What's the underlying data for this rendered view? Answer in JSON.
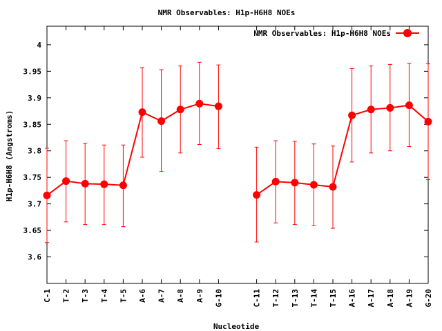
{
  "chart_data": {
    "type": "line",
    "title": "NMR Observables: H1p-H6H8 NOEs",
    "xlabel": "Nucleotide",
    "ylabel": "H1p-H6H8 (Angstroms)",
    "ylim": [
      3.55,
      4.035
    ],
    "yticks": [
      3.6,
      3.65,
      3.7,
      3.75,
      3.8,
      3.85,
      3.9,
      3.95,
      4
    ],
    "ytick_labels": [
      "3.6",
      "3.65",
      "3.7",
      "3.75",
      "3.8",
      "3.85",
      "3.9",
      "3.95",
      "4"
    ],
    "grid": false,
    "legend_position": "top-right",
    "color": "#ff0000",
    "categories": [
      "C-1",
      "T-2",
      "T-3",
      "T-4",
      "T-5",
      "A-6",
      "A-7",
      "A-8",
      "A-9",
      "G-10",
      "C-11",
      "T-12",
      "T-13",
      "T-14",
      "T-15",
      "A-16",
      "A-17",
      "A-18",
      "A-19",
      "G-20"
    ],
    "x_index": [
      1,
      2,
      3,
      4,
      5,
      6,
      7,
      8,
      9,
      10,
      12,
      13,
      14,
      15,
      16,
      17,
      18,
      19,
      20,
      21
    ],
    "series": [
      {
        "name": "NMR Observables: H1p-H6H8 NOEs",
        "segments": [
          [
            0,
            9
          ],
          [
            10,
            19
          ]
        ],
        "values": [
          3.716,
          3.743,
          3.738,
          3.737,
          3.735,
          3.873,
          3.856,
          3.878,
          3.889,
          3.884,
          3.717,
          3.742,
          3.74,
          3.736,
          3.732,
          3.867,
          3.878,
          3.881,
          3.886,
          3.855
        ],
        "error_low": [
          3.627,
          3.666,
          3.661,
          3.661,
          3.657,
          3.788,
          3.761,
          3.796,
          3.812,
          3.804,
          3.628,
          3.664,
          3.661,
          3.659,
          3.654,
          3.779,
          3.796,
          3.8,
          3.808,
          3.746
        ],
        "error_high": [
          3.805,
          3.819,
          3.814,
          3.811,
          3.811,
          3.957,
          3.953,
          3.96,
          3.967,
          3.962,
          3.807,
          3.819,
          3.818,
          3.813,
          3.809,
          3.955,
          3.96,
          3.963,
          3.965,
          3.964
        ]
      }
    ]
  }
}
